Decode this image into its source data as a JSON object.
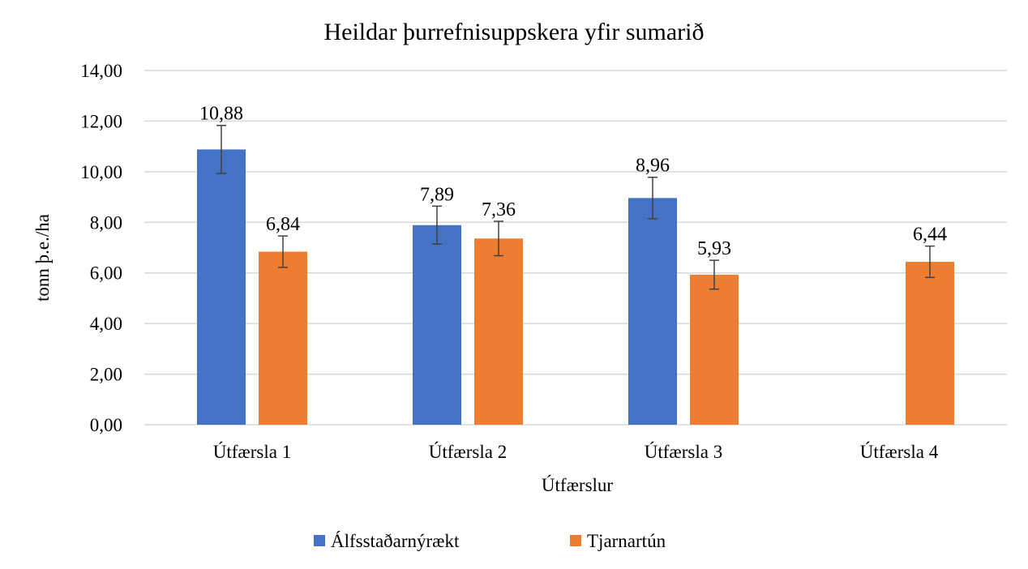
{
  "chart_data": {
    "type": "bar",
    "title": "Heildar þurrefnisuppskera yfir sumarið",
    "xlabel": "Útfærslur",
    "ylabel": "tonn þ.e./ha",
    "ylim": [
      0,
      14
    ],
    "yticks": [
      "0,00",
      "2,00",
      "4,00",
      "6,00",
      "8,00",
      "10,00",
      "12,00",
      "14,00"
    ],
    "ytick_values": [
      0,
      2,
      4,
      6,
      8,
      10,
      12,
      14
    ],
    "grid": true,
    "legend_position": "bottom",
    "categories": [
      "Útfærsla 1",
      "Útfærsla 2",
      "Útfærsla 3",
      "Útfærsla 4"
    ],
    "series": [
      {
        "name": "Álfsstaðarnýrækt",
        "color": "#4472c4",
        "values": [
          10.88,
          7.89,
          8.96,
          null
        ],
        "labels": [
          "10,88",
          "7,89",
          "8,96",
          ""
        ],
        "error": [
          0.95,
          0.75,
          0.82,
          null
        ]
      },
      {
        "name": "Tjarnartún",
        "color": "#ed7d31",
        "values": [
          6.84,
          7.36,
          5.93,
          6.44
        ],
        "labels": [
          "6,84",
          "7,36",
          "5,93",
          "6,44"
        ],
        "error": [
          0.62,
          0.68,
          0.57,
          0.62
        ]
      }
    ]
  }
}
